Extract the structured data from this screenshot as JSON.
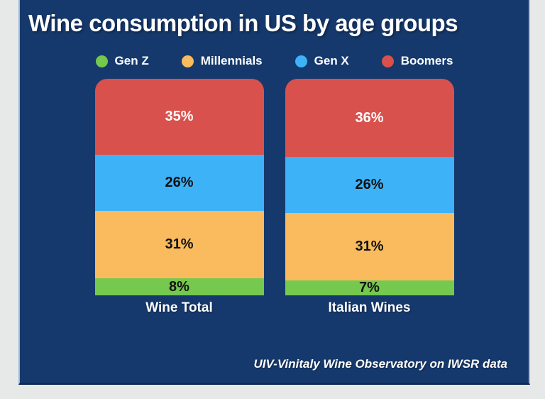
{
  "page": {
    "background": "#e7e8e8"
  },
  "panel": {
    "background": "#16396d",
    "edge_color": "#9fb9d8"
  },
  "header": {
    "title": "Wine consumption in US by age groups"
  },
  "footer": {
    "attribution": "UIV-Vinitaly Wine Observatory on IWSR data"
  },
  "chart_data": {
    "type": "bar",
    "subtype": "stacked-percentage-column",
    "title": "Wine consumption in US by age groups",
    "categories": [
      "Wine Total",
      "Italian Wines"
    ],
    "series": [
      {
        "name": "Boomers",
        "color": "#d8514d",
        "label_color": "#ffffff",
        "values": [
          35,
          36
        ]
      },
      {
        "name": "Gen X",
        "color": "#3db2f7",
        "label_color": "#111111",
        "values": [
          26,
          26
        ]
      },
      {
        "name": "Millennials",
        "color": "#f9bb5d",
        "label_color": "#111111",
        "values": [
          31,
          31
        ]
      },
      {
        "name": "Gen Z",
        "color": "#74c94e",
        "label_color": "#111111",
        "values": [
          8,
          7
        ]
      }
    ],
    "stack_order_top_to_bottom": [
      "Boomers",
      "Gen X",
      "Millennials",
      "Gen Z"
    ],
    "legend": {
      "position": "top",
      "order": [
        "Gen Z",
        "Millennials",
        "Gen X",
        "Boomers"
      ]
    },
    "value_suffix": "%",
    "ylim": [
      0,
      100
    ],
    "grid": false,
    "source": "UIV-Vinitaly Wine Observatory on IWSR data"
  }
}
